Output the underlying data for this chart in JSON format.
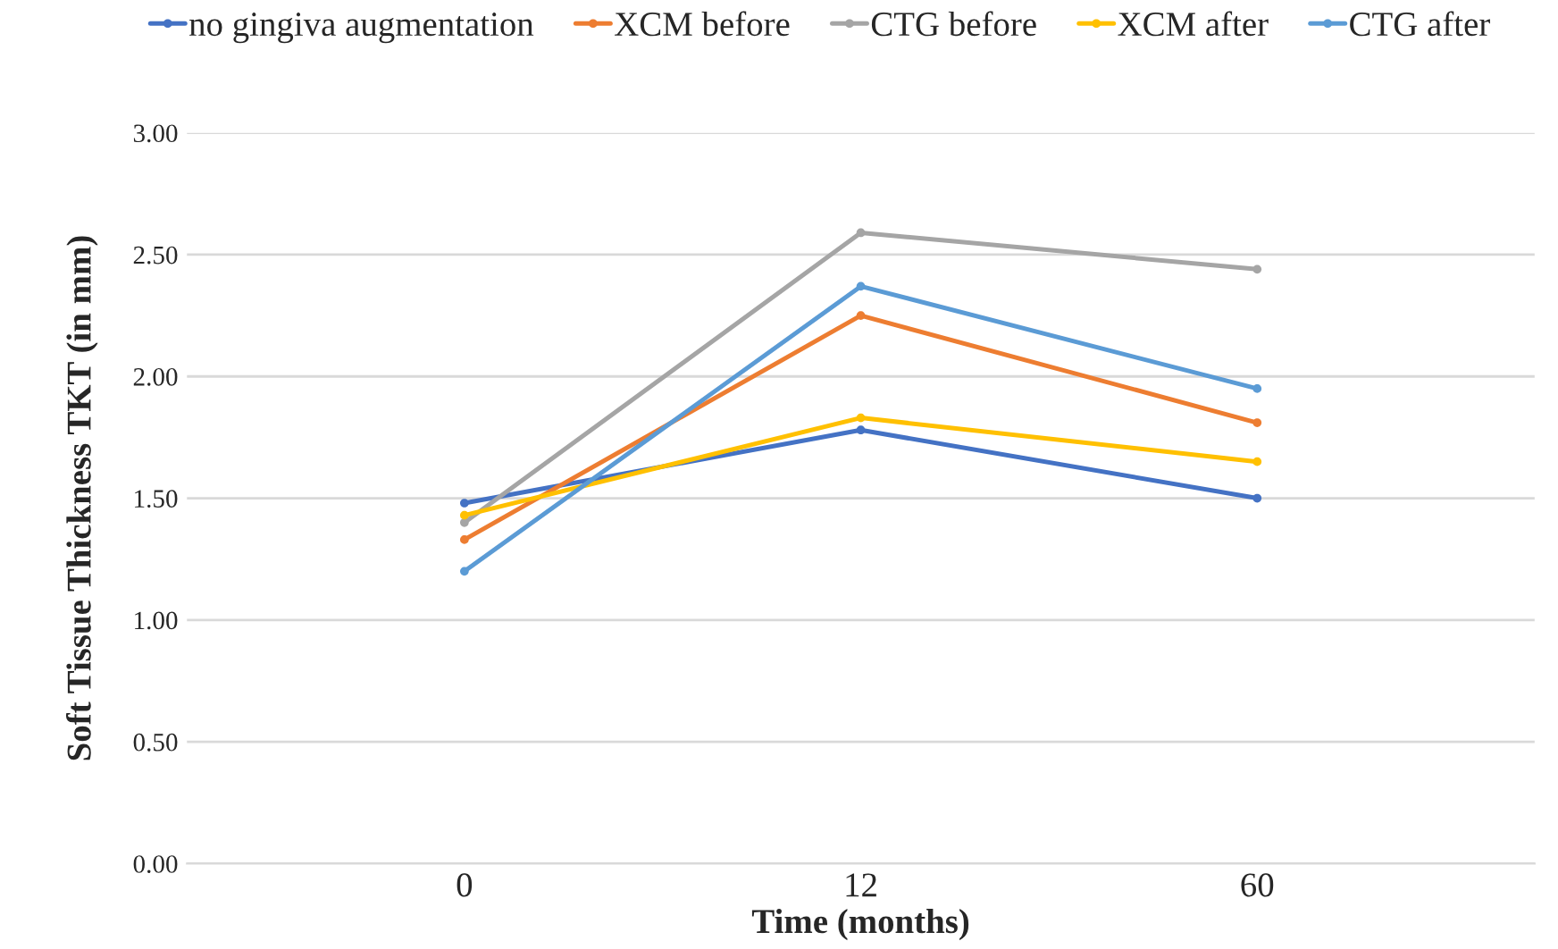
{
  "chart_data": {
    "type": "line",
    "xlabel": "Time (months)",
    "ylabel": "Soft Tissue Thickness TKT (in mm)",
    "categories": [
      "0",
      "12",
      "60"
    ],
    "series": [
      {
        "name": "no gingiva augmentation",
        "color": "#4472c4",
        "values": [
          1.48,
          1.78,
          1.5
        ]
      },
      {
        "name": "XCM before",
        "color": "#ed7d31",
        "values": [
          1.33,
          2.25,
          1.81
        ]
      },
      {
        "name": "CTG before",
        "color": "#a5a5a5",
        "values": [
          1.4,
          2.59,
          2.44
        ]
      },
      {
        "name": "XCM after",
        "color": "#ffc000",
        "values": [
          1.43,
          1.83,
          1.65
        ]
      },
      {
        "name": "CTG after",
        "color": "#5b9bd5",
        "values": [
          1.2,
          2.37,
          1.95
        ]
      }
    ],
    "ylim": [
      0,
      3
    ],
    "yticks": [
      {
        "value": 0,
        "label": "0.00"
      },
      {
        "value": 0.5,
        "label": "0.50"
      },
      {
        "value": 1,
        "label": "1.00"
      },
      {
        "value": 1.5,
        "label": "1.50"
      },
      {
        "value": 2,
        "label": "2.00"
      },
      {
        "value": 2.5,
        "label": "2.50"
      },
      {
        "value": 3,
        "label": "3.00"
      }
    ],
    "grid": "y",
    "legend": "top",
    "marker": "circle",
    "line_style": "solid"
  }
}
